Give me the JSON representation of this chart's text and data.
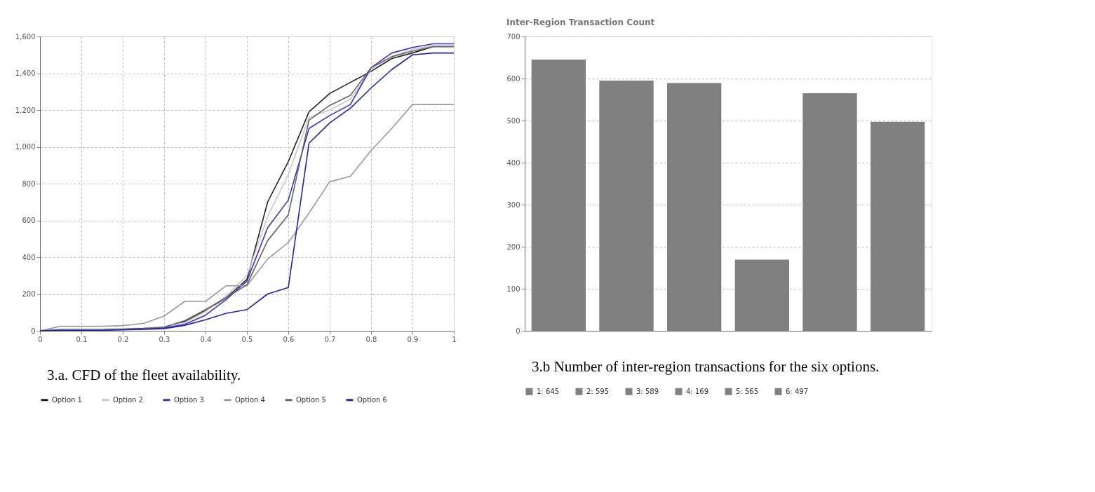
{
  "chart_data": [
    {
      "type": "line",
      "x": [
        0,
        0.05,
        0.1,
        0.15,
        0.2,
        0.25,
        0.3,
        0.35,
        0.4,
        0.45,
        0.5,
        0.55,
        0.6,
        0.65,
        0.7,
        0.75,
        0.8,
        0.85,
        0.9,
        0.95,
        1
      ],
      "series": [
        {
          "name": "Option 1",
          "color": "#222222",
          "values": [
            0,
            5,
            5,
            5,
            8,
            12,
            20,
            50,
            110,
            180,
            280,
            700,
            920,
            1190,
            1290,
            1350,
            1410,
            1480,
            1510,
            1545,
            1545
          ]
        },
        {
          "name": "Option 2",
          "color": "#c8c8c8",
          "values": [
            0,
            10,
            10,
            10,
            12,
            15,
            22,
            45,
            105,
            190,
            300,
            620,
            850,
            1160,
            1200,
            1260,
            1420,
            1490,
            1530,
            1550,
            1550
          ]
        },
        {
          "name": "Option 3",
          "color": "#3333cc",
          "values": [
            0,
            5,
            5,
            5,
            8,
            12,
            15,
            35,
            85,
            170,
            270,
            560,
            710,
            1100,
            1170,
            1230,
            1430,
            1510,
            1540,
            1560,
            1560
          ]
        },
        {
          "name": "Option 4",
          "color": "#999999",
          "values": [
            0,
            25,
            25,
            25,
            28,
            40,
            80,
            160,
            160,
            245,
            245,
            390,
            480,
            640,
            810,
            840,
            980,
            1100,
            1230,
            1230,
            1230
          ]
        },
        {
          "name": "Option 5",
          "color": "#666666",
          "values": [
            0,
            5,
            5,
            5,
            8,
            12,
            20,
            55,
            115,
            180,
            250,
            490,
            630,
            1145,
            1225,
            1280,
            1430,
            1490,
            1520,
            1545,
            1545
          ]
        },
        {
          "name": "Option 6",
          "color": "#2222aa",
          "values": [
            0,
            3,
            3,
            3,
            5,
            8,
            12,
            30,
            60,
            95,
            115,
            200,
            235,
            1020,
            1130,
            1210,
            1320,
            1420,
            1500,
            1510,
            1510
          ]
        }
      ],
      "xlim": [
        0,
        1
      ],
      "xticks": [
        0,
        0.1,
        0.2,
        0.3,
        0.4,
        0.5,
        0.6,
        0.7,
        0.8,
        0.9,
        1
      ],
      "ylim": [
        0,
        1600
      ],
      "yticks": [
        0,
        200,
        400,
        600,
        800,
        {
          "value": 1000,
          "label": "1,000"
        },
        {
          "value": 1200,
          "label": "1,200"
        },
        {
          "value": 1400,
          "label": "1,400"
        },
        {
          "value": 1600,
          "label": "1,600"
        }
      ],
      "grid": true,
      "legend": "bottom",
      "marker": "none",
      "line_style": "solid",
      "annotations": [
        "3.a. CFD of the fleet availability."
      ]
    },
    {
      "type": "bar",
      "title": "Inter-Region Transaction Count",
      "categories": [
        null,
        null,
        null,
        null,
        null,
        null
      ],
      "series": [
        {
          "name": "1: 645",
          "color": "#808080",
          "values": [
            645,
            null,
            null,
            null,
            null,
            null
          ]
        },
        {
          "name": "2: 595",
          "color": "#808080",
          "values": [
            null,
            595,
            null,
            null,
            null,
            null
          ]
        },
        {
          "name": "3: 589",
          "color": "#808080",
          "values": [
            null,
            null,
            589,
            null,
            null,
            null
          ]
        },
        {
          "name": "4: 169",
          "color": "#808080",
          "values": [
            null,
            null,
            null,
            169,
            null,
            null
          ]
        },
        {
          "name": "5: 565",
          "color": "#808080",
          "values": [
            null,
            null,
            null,
            null,
            565,
            null
          ]
        },
        {
          "name": "6: 497",
          "color": "#808080",
          "values": [
            null,
            null,
            null,
            null,
            null,
            497
          ]
        }
      ],
      "ylim": [
        0,
        700
      ],
      "yticks": [
        0,
        100,
        200,
        300,
        400,
        500,
        600,
        700
      ],
      "grid": "y",
      "legend": "bottom",
      "annotations": [
        "3.b Number of inter-region transactions for the six options."
      ]
    }
  ]
}
